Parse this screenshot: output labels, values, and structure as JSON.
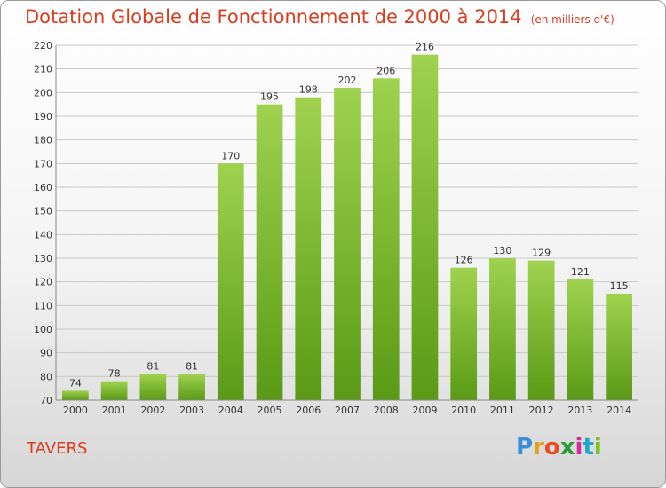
{
  "header": {
    "title": "Dotation Globale de Fonctionnement de 2000 à 2014",
    "unit": "(en milliers d'€)"
  },
  "footer": {
    "commune": "TAVERS",
    "logo": "Proxiti"
  },
  "colors": {
    "title": "#d93c1e",
    "bar_top": "#9fd24e",
    "bar_bottom": "#5a9a16",
    "grid": "#c8c8c8"
  },
  "chart_data": {
    "type": "bar",
    "title": "Dotation Globale de Fonctionnement de 2000 à 2014",
    "subtitle": "(en milliers d'€)",
    "xlabel": "",
    "ylabel": "",
    "categories": [
      "2000",
      "2001",
      "2002",
      "2003",
      "2004",
      "2005",
      "2006",
      "2007",
      "2008",
      "2009",
      "2010",
      "2011",
      "2012",
      "2013",
      "2014"
    ],
    "values": [
      74,
      78,
      81,
      81,
      170,
      195,
      198,
      202,
      206,
      216,
      126,
      130,
      129,
      121,
      115
    ],
    "ylim": [
      70,
      220
    ],
    "yticks": [
      70,
      80,
      90,
      100,
      110,
      120,
      130,
      140,
      150,
      160,
      170,
      180,
      190,
      200,
      210,
      220
    ],
    "grid": true,
    "data_labels": true
  }
}
